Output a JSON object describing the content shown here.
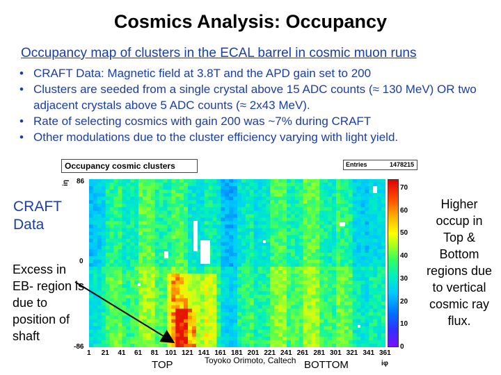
{
  "slide": {
    "title": "Cosmics Analysis: Occupancy",
    "subtitle": "Occupancy map of clusters in the ECAL barrel in cosmic muon runs",
    "bullets": [
      "CRAFT Data: Magnetic field at 3.8T and the APD gain set to 200",
      "Clusters are seeded from a single crystal above 15 ADC counts (≈ 130 MeV) OR two adjacent crystals above 5 ADC counts (≈ 2x43 MeV).",
      "Rate of selecting cosmics with gain 200 was ~7% during CRAFT",
      "Other modulations due to the cluster efficiency varying with light yield."
    ],
    "annotations": {
      "left_top": "CRAFT Data",
      "left_bottom": "Excess in EB- region is due to position of shaft",
      "right": "Higher occup in Top & Bottom regions due to vertical cosmic ray flux.",
      "top_label": "TOP",
      "bottom_label": "BOTTOM",
      "credit": "Toyoko Orimoto, Caltech"
    }
  },
  "plot": {
    "title": "Occupancy cosmic clusters",
    "entries_label": "Entries",
    "entries_value": "1478215",
    "eta_axis_label": "iη",
    "phi_axis_label": "iφ",
    "y_ticks": [
      "86",
      "0",
      "-86"
    ],
    "x_ticks": [
      "1",
      "21",
      "41",
      "61",
      "81",
      "101",
      "121",
      "141",
      "161",
      "181",
      "201",
      "221",
      "241",
      "261",
      "281",
      "301",
      "321",
      "341",
      "361"
    ],
    "colorbar_ticks": [
      "70",
      "60",
      "50",
      "40",
      "30",
      "20",
      "10",
      "0"
    ],
    "colors": {
      "low": "#3030ff",
      "mid": "#00c8ff",
      "high": "#ffff00",
      "peak": "#e00000",
      "empty": "#ffffff"
    }
  }
}
